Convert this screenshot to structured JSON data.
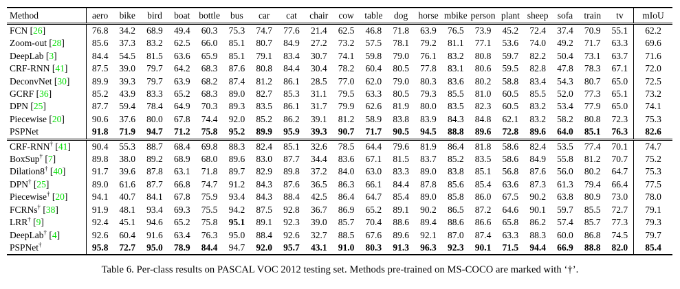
{
  "colors": {
    "citation": "#00dd00",
    "text": "#000000",
    "background": "#ffffff"
  },
  "caption": {
    "text": "Table 6. Per-class results on PASCAL VOC 2012 testing set. Methods pre-trained on MS-COCO are marked with ‘†’."
  },
  "table": {
    "columns": [
      "Method",
      "aero",
      "bike",
      "bird",
      "boat",
      "bottle",
      "bus",
      "car",
      "cat",
      "chair",
      "cow",
      "table",
      "dog",
      "horse",
      "mbike",
      "person",
      "plant",
      "sheep",
      "sofa",
      "train",
      "tv",
      "mIoU"
    ],
    "sections": [
      {
        "rows": [
          {
            "method": "FCN",
            "dagger": false,
            "cite": "26",
            "bold": [],
            "values": [
              "76.8",
              "34.2",
              "68.9",
              "49.4",
              "60.3",
              "75.3",
              "74.7",
              "77.6",
              "21.4",
              "62.5",
              "46.8",
              "71.8",
              "63.9",
              "76.5",
              "73.9",
              "45.2",
              "72.4",
              "37.4",
              "70.9",
              "55.1",
              "62.2"
            ]
          },
          {
            "method": "Zoom-out",
            "dagger": false,
            "cite": "28",
            "bold": [],
            "values": [
              "85.6",
              "37.3",
              "83.2",
              "62.5",
              "66.0",
              "85.1",
              "80.7",
              "84.9",
              "27.2",
              "73.2",
              "57.5",
              "78.1",
              "79.2",
              "81.1",
              "77.1",
              "53.6",
              "74.0",
              "49.2",
              "71.7",
              "63.3",
              "69.6"
            ]
          },
          {
            "method": "DeepLab",
            "dagger": false,
            "cite": "3",
            "bold": [],
            "values": [
              "84.4",
              "54.5",
              "81.5",
              "63.6",
              "65.9",
              "85.1",
              "79.1",
              "83.4",
              "30.7",
              "74.1",
              "59.8",
              "79.0",
              "76.1",
              "83.2",
              "80.8",
              "59.7",
              "82.2",
              "50.4",
              "73.1",
              "63.7",
              "71.6"
            ]
          },
          {
            "method": "CRF-RNN",
            "dagger": false,
            "cite": "41",
            "bold": [],
            "values": [
              "87.5",
              "39.0",
              "79.7",
              "64.2",
              "68.3",
              "87.6",
              "80.8",
              "84.4",
              "30.4",
              "78.2",
              "60.4",
              "80.5",
              "77.8",
              "83.1",
              "80.6",
              "59.5",
              "82.8",
              "47.8",
              "78.3",
              "67.1",
              "72.0"
            ]
          },
          {
            "method": "DeconvNet",
            "dagger": false,
            "cite": "30",
            "bold": [],
            "values": [
              "89.9",
              "39.3",
              "79.7",
              "63.9",
              "68.2",
              "87.4",
              "81.2",
              "86.1",
              "28.5",
              "77.0",
              "62.0",
              "79.0",
              "80.3",
              "83.6",
              "80.2",
              "58.8",
              "83.4",
              "54.3",
              "80.7",
              "65.0",
              "72.5"
            ]
          },
          {
            "method": "GCRF",
            "dagger": false,
            "cite": "36",
            "bold": [],
            "values": [
              "85.2",
              "43.9",
              "83.3",
              "65.2",
              "68.3",
              "89.0",
              "82.7",
              "85.3",
              "31.1",
              "79.5",
              "63.3",
              "80.5",
              "79.3",
              "85.5",
              "81.0",
              "60.5",
              "85.5",
              "52.0",
              "77.3",
              "65.1",
              "73.2"
            ]
          },
          {
            "method": "DPN",
            "dagger": false,
            "cite": "25",
            "bold": [],
            "values": [
              "87.7",
              "59.4",
              "78.4",
              "64.9",
              "70.3",
              "89.3",
              "83.5",
              "86.1",
              "31.7",
              "79.9",
              "62.6",
              "81.9",
              "80.0",
              "83.5",
              "82.3",
              "60.5",
              "83.2",
              "53.4",
              "77.9",
              "65.0",
              "74.1"
            ]
          },
          {
            "method": "Piecewise",
            "dagger": false,
            "cite": "20",
            "bold": [],
            "values": [
              "90.6",
              "37.6",
              "80.0",
              "67.8",
              "74.4",
              "92.0",
              "85.2",
              "86.2",
              "39.1",
              "81.2",
              "58.9",
              "83.8",
              "83.9",
              "84.3",
              "84.8",
              "62.1",
              "83.2",
              "58.2",
              "80.8",
              "72.3",
              "75.3"
            ]
          },
          {
            "method": "PSPNet",
            "dagger": false,
            "cite": null,
            "bold": [
              0,
              1,
              2,
              3,
              4,
              5,
              6,
              7,
              8,
              9,
              10,
              11,
              12,
              13,
              14,
              15,
              16,
              17,
              18,
              19,
              20
            ],
            "values": [
              "91.8",
              "71.9",
              "94.7",
              "71.2",
              "75.8",
              "95.2",
              "89.9",
              "95.9",
              "39.3",
              "90.7",
              "71.7",
              "90.5",
              "94.5",
              "88.8",
              "89.6",
              "72.8",
              "89.6",
              "64.0",
              "85.1",
              "76.3",
              "82.6"
            ]
          }
        ]
      },
      {
        "rows": [
          {
            "method": "CRF-RNN",
            "dagger": true,
            "cite": "41",
            "bold": [],
            "values": [
              "90.4",
              "55.3",
              "88.7",
              "68.4",
              "69.8",
              "88.3",
              "82.4",
              "85.1",
              "32.6",
              "78.5",
              "64.4",
              "79.6",
              "81.9",
              "86.4",
              "81.8",
              "58.6",
              "82.4",
              "53.5",
              "77.4",
              "70.1",
              "74.7"
            ]
          },
          {
            "method": "BoxSup",
            "dagger": true,
            "cite": "7",
            "bold": [],
            "values": [
              "89.8",
              "38.0",
              "89.2",
              "68.9",
              "68.0",
              "89.6",
              "83.0",
              "87.7",
              "34.4",
              "83.6",
              "67.1",
              "81.5",
              "83.7",
              "85.2",
              "83.5",
              "58.6",
              "84.9",
              "55.8",
              "81.2",
              "70.7",
              "75.2"
            ]
          },
          {
            "method": "Dilation8",
            "dagger": true,
            "cite": "40",
            "bold": [],
            "values": [
              "91.7",
              "39.6",
              "87.8",
              "63.1",
              "71.8",
              "89.7",
              "82.9",
              "89.8",
              "37.2",
              "84.0",
              "63.0",
              "83.3",
              "89.0",
              "83.8",
              "85.1",
              "56.8",
              "87.6",
              "56.0",
              "80.2",
              "64.7",
              "75.3"
            ]
          },
          {
            "method": "DPN",
            "dagger": true,
            "cite": "25",
            "bold": [],
            "values": [
              "89.0",
              "61.6",
              "87.7",
              "66.8",
              "74.7",
              "91.2",
              "84.3",
              "87.6",
              "36.5",
              "86.3",
              "66.1",
              "84.4",
              "87.8",
              "85.6",
              "85.4",
              "63.6",
              "87.3",
              "61.3",
              "79.4",
              "66.4",
              "77.5"
            ]
          },
          {
            "method": "Piecewise",
            "dagger": true,
            "cite": "20",
            "bold": [],
            "values": [
              "94.1",
              "40.7",
              "84.1",
              "67.8",
              "75.9",
              "93.4",
              "84.3",
              "88.4",
              "42.5",
              "86.4",
              "64.7",
              "85.4",
              "89.0",
              "85.8",
              "86.0",
              "67.5",
              "90.2",
              "63.8",
              "80.9",
              "73.0",
              "78.0"
            ]
          },
          {
            "method": "FCRNs",
            "dagger": true,
            "cite": "38",
            "bold": [],
            "values": [
              "91.9",
              "48.1",
              "93.4",
              "69.3",
              "75.5",
              "94.2",
              "87.5",
              "92.8",
              "36.7",
              "86.9",
              "65.2",
              "89.1",
              "90.2",
              "86.5",
              "87.2",
              "64.6",
              "90.1",
              "59.7",
              "85.5",
              "72.7",
              "79.1"
            ]
          },
          {
            "method": "LRR",
            "dagger": true,
            "cite": "9",
            "bold": [
              5
            ],
            "values": [
              "92.4",
              "45.1",
              "94.6",
              "65.2",
              "75.8",
              "95.1",
              "89.1",
              "92.3",
              "39.0",
              "85.7",
              "70.4",
              "88.6",
              "89.4",
              "88.6",
              "86.6",
              "65.8",
              "86.2",
              "57.4",
              "85.7",
              "77.3",
              "79.3"
            ]
          },
          {
            "method": "DeepLab",
            "dagger": true,
            "cite": "4",
            "bold": [],
            "values": [
              "92.6",
              "60.4",
              "91.6",
              "63.4",
              "76.3",
              "95.0",
              "88.4",
              "92.6",
              "32.7",
              "88.5",
              "67.6",
              "89.6",
              "92.1",
              "87.0",
              "87.4",
              "63.3",
              "88.3",
              "60.0",
              "86.8",
              "74.5",
              "79.7"
            ]
          },
          {
            "method": "PSPNet",
            "dagger": true,
            "cite": null,
            "bold": [
              0,
              1,
              2,
              3,
              4,
              6,
              7,
              8,
              9,
              10,
              11,
              12,
              13,
              14,
              15,
              16,
              17,
              18,
              19,
              20
            ],
            "values": [
              "95.8",
              "72.7",
              "95.0",
              "78.9",
              "84.4",
              "94.7",
              "92.0",
              "95.7",
              "43.1",
              "91.0",
              "80.3",
              "91.3",
              "96.3",
              "92.3",
              "90.1",
              "71.5",
              "94.4",
              "66.9",
              "88.8",
              "82.0",
              "85.4"
            ]
          }
        ]
      }
    ]
  }
}
